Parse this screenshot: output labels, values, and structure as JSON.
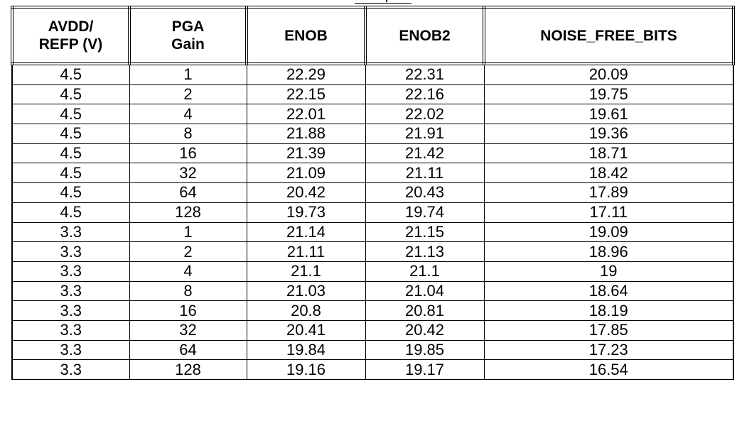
{
  "table": {
    "headers": [
      [
        "AVDD/",
        "REFP (V)"
      ],
      [
        "PGA",
        "Gain"
      ],
      [
        "ENOB"
      ],
      [
        "ENOB2"
      ],
      [
        "NOISE_FREE_BITS"
      ]
    ],
    "rows": [
      [
        "4.5",
        "1",
        "22.29",
        "22.31",
        "20.09"
      ],
      [
        "4.5",
        "2",
        "22.15",
        "22.16",
        "19.75"
      ],
      [
        "4.5",
        "4",
        "22.01",
        "22.02",
        "19.61"
      ],
      [
        "4.5",
        "8",
        "21.88",
        "21.91",
        "19.36"
      ],
      [
        "4.5",
        "16",
        "21.39",
        "21.42",
        "18.71"
      ],
      [
        "4.5",
        "32",
        "21.09",
        "21.11",
        "18.42"
      ],
      [
        "4.5",
        "64",
        "20.42",
        "20.43",
        "17.89"
      ],
      [
        "4.5",
        "128",
        "19.73",
        "19.74",
        "17.11"
      ],
      [
        "3.3",
        "1",
        "21.14",
        "21.15",
        "19.09"
      ],
      [
        "3.3",
        "2",
        "21.11",
        "21.13",
        "18.96"
      ],
      [
        "3.3",
        "4",
        "21.1",
        "21.1",
        "19"
      ],
      [
        "3.3",
        "8",
        "21.03",
        "21.04",
        "18.64"
      ],
      [
        "3.3",
        "16",
        "20.8",
        "20.81",
        "18.19"
      ],
      [
        "3.3",
        "32",
        "20.41",
        "20.42",
        "17.85"
      ],
      [
        "3.3",
        "64",
        "19.84",
        "19.85",
        "17.23"
      ],
      [
        "3.3",
        "128",
        "19.16",
        "19.17",
        "16.54"
      ]
    ]
  }
}
